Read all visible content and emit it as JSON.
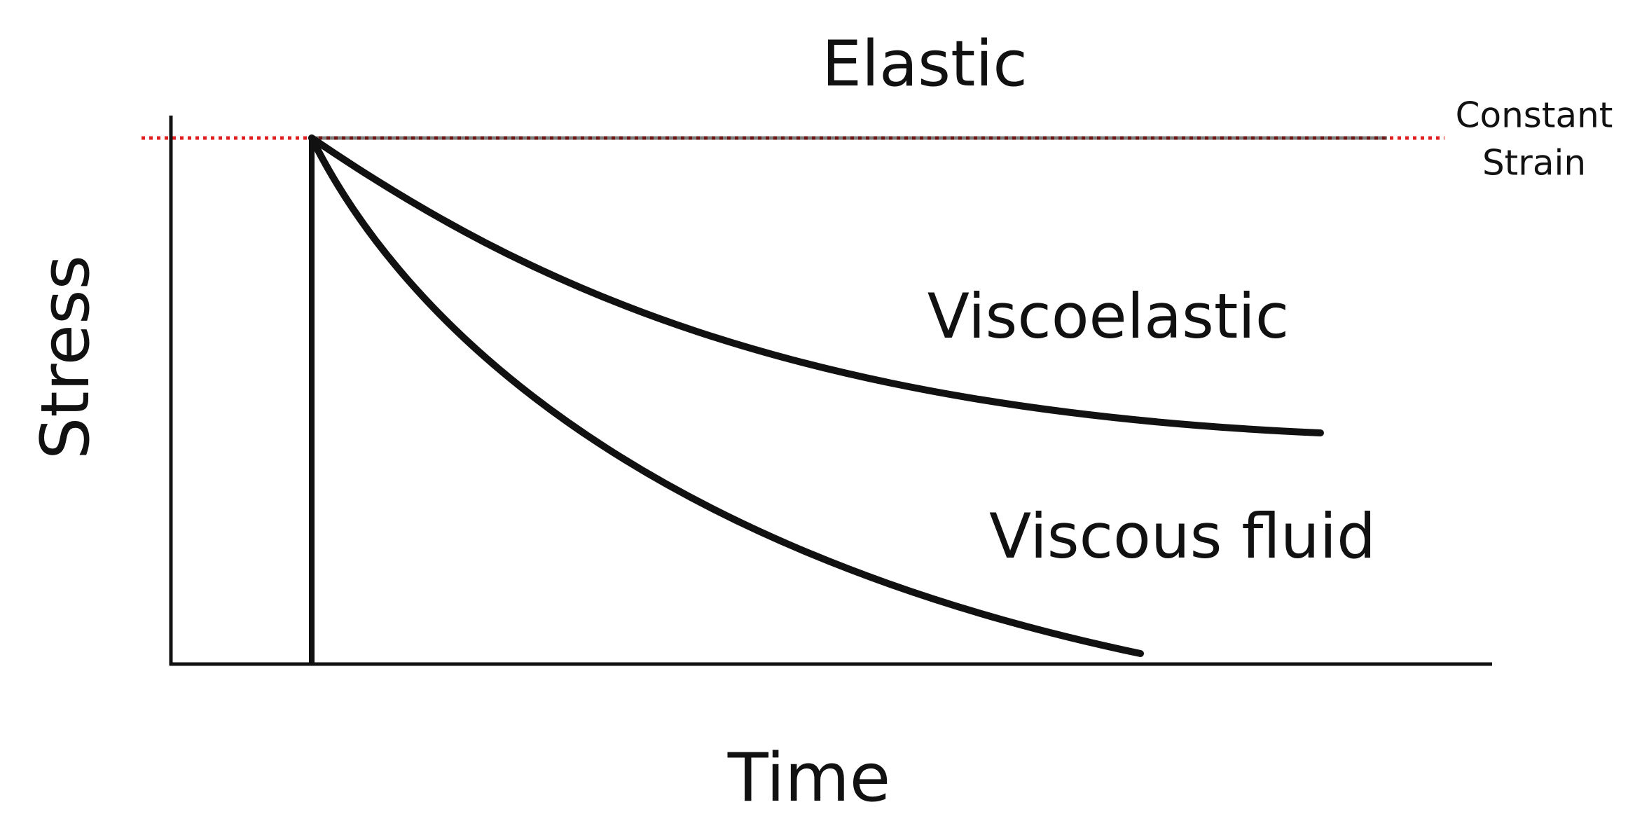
{
  "title": "Elastic",
  "reference_line": {
    "label": [
      "Constant",
      "Strain"
    ]
  },
  "axes": {
    "y_label": "Stress",
    "x_label": "Time"
  },
  "curves": [
    {
      "label": "Viscoelastic"
    },
    {
      "label": "Viscous fluid"
    }
  ]
}
